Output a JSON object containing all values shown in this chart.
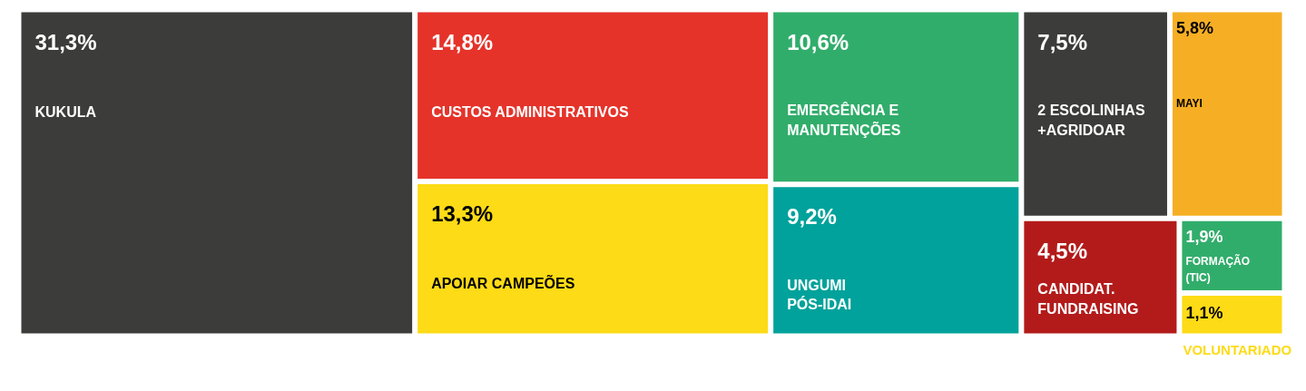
{
  "chart_data": {
    "type": "other",
    "categories": [
      "KUKULA",
      "CUSTOS ADMINISTRATIVOS",
      "APOIAR CAMPEÕES",
      "EMERGÊNCIA E\nMANUTENÇÕES",
      "UNGUMI\nPÓS-IDAI",
      "2 ESCOLINHAS\n+AGRIDOAR",
      "MAYI",
      "CANDIDAT.\nFUNDRAISING",
      "FORMAÇÃO (TIC)",
      "VOLUNTARIADO"
    ],
    "values": [
      31.3,
      14.8,
      13.3,
      10.6,
      9.2,
      7.5,
      5.8,
      4.5,
      1.9,
      1.1
    ],
    "value_labels": [
      "31,3%",
      "14,8%",
      "13,3%",
      "10,6%",
      "9,2%",
      "7,5%",
      "5,8%",
      "4,5%",
      "1,9%",
      "1,1%"
    ],
    "colors": [
      "#3c3c3b",
      "#e5332a",
      "#fddb16",
      "#31ad6b",
      "#00a29b",
      "#3c3c3b",
      "#f6af24",
      "#b31b1b",
      "#31ad6b",
      "#fddb16"
    ]
  }
}
